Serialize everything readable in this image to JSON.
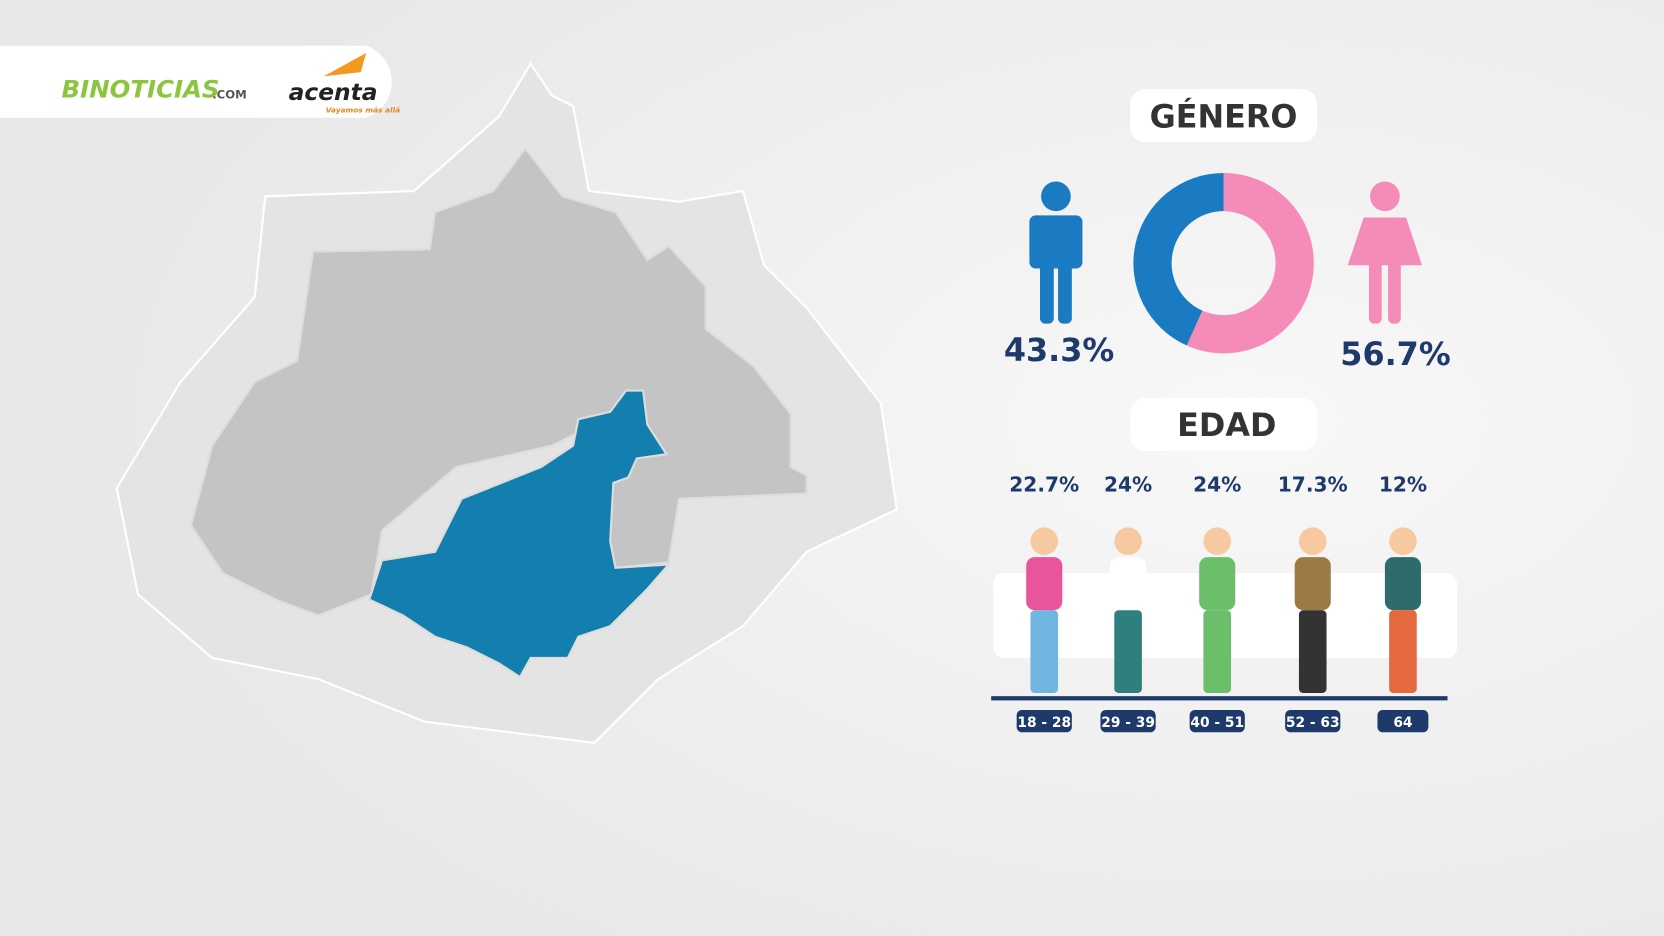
{
  "header": {
    "brand": "BINOTICIAS",
    "brand_suffix": ".COM",
    "partner": "acenta",
    "partner_tagline": "Vayamos más allá"
  },
  "gender": {
    "title": "GÉNERO",
    "segments": [
      {
        "value": 43.3,
        "label": "43.3%",
        "color": "#1a7bc2"
      },
      {
        "value": 56.7,
        "label": "56.7%",
        "color": "#f58bb8"
      }
    ]
  },
  "age": {
    "title": "EDAD",
    "groups": [
      {
        "range": "18 - 28",
        "value": 22.7,
        "label": "22.7%"
      },
      {
        "range": "29 - 39",
        "value": 24,
        "label": "24%"
      },
      {
        "range": "40 - 51",
        "value": 24,
        "label": "24%"
      },
      {
        "range": "52 - 63",
        "value": 17.3,
        "label": "17.3%"
      },
      {
        "range": "64",
        "value": 12,
        "label": "12%"
      }
    ]
  }
}
